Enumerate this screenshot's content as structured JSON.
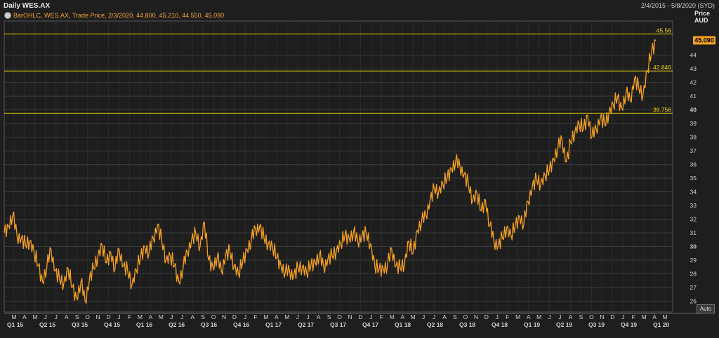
{
  "header": {
    "title": "Daily WES.AX",
    "date_range": "2/4/2015 - 5/8/2020 (SYD)",
    "price_label": "Price",
    "currency_label": "AUD",
    "auto_label": "Auto"
  },
  "legend": {
    "text": "BarOHLC, WES.AX, Trade Price, 2/3/2020, 44.800, 45.210, 44.550, 45.090"
  },
  "colors": {
    "background": "#1e1e1e",
    "series": "#f5a020",
    "hlines": "#e8d000",
    "last_price_tag": "#f5a020",
    "grid": "#3a3a3a"
  },
  "chart_data": {
    "type": "line",
    "title": "Daily WES.AX",
    "ylabel": "Price AUD",
    "ylim": [
      25.2,
      46.5
    ],
    "grid": true,
    "y_ticks": [
      26,
      27,
      28,
      29,
      30,
      31,
      32,
      33,
      34,
      35,
      36,
      37,
      38,
      39,
      40,
      41,
      42,
      43,
      44
    ],
    "month_labels": [
      "M",
      "A",
      "M",
      "J",
      "J",
      "A",
      "S",
      "O",
      "N",
      "D",
      "J",
      "F",
      "M",
      "A",
      "M",
      "J",
      "J",
      "A",
      "S",
      "O",
      "N",
      "D",
      "J",
      "F",
      "M",
      "A",
      "M",
      "J",
      "J",
      "A",
      "S",
      "O",
      "N",
      "D",
      "J",
      "F",
      "M",
      "A",
      "M",
      "J",
      "J",
      "A",
      "S",
      "O",
      "N",
      "D",
      "J",
      "F",
      "M",
      "A",
      "M",
      "J",
      "J",
      "A",
      "S",
      "O",
      "N",
      "D",
      "J",
      "F",
      "M",
      "A",
      "M"
    ],
    "quarter_labels": [
      "Q1 15",
      "Q2 15",
      "Q3 15",
      "Q4 15",
      "Q1 16",
      "Q2 16",
      "Q3 16",
      "Q4 16",
      "Q1 17",
      "Q2 17",
      "Q3 17",
      "Q4 17",
      "Q1 18",
      "Q2 18",
      "Q3 18",
      "Q4 18",
      "Q1 19",
      "Q2 19",
      "Q3 19",
      "Q4 19",
      "Q1 20"
    ],
    "horizontal_lines": [
      {
        "label": "45.56",
        "value": 45.56
      },
      {
        "label": "42.846",
        "value": 42.846
      },
      {
        "label": "39.756",
        "value": 39.756
      }
    ],
    "last_price": {
      "label": "45.090",
      "value": 45.09
    },
    "series": [
      {
        "values": [
          [
            0,
            31.0
          ],
          [
            1,
            31.5
          ],
          [
            2,
            32.3
          ],
          [
            3,
            30.8
          ],
          [
            4,
            30.6
          ],
          [
            5,
            30.1
          ],
          [
            6,
            30.4
          ],
          [
            7,
            29.6
          ],
          [
            8,
            28.6
          ],
          [
            9,
            27.4
          ],
          [
            10,
            28.5
          ],
          [
            11,
            29.8
          ],
          [
            12,
            28.2
          ],
          [
            13,
            27.6
          ],
          [
            14,
            27.3
          ],
          [
            15,
            28.4
          ],
          [
            16,
            27.0
          ],
          [
            17,
            26.2
          ],
          [
            18,
            27.4
          ],
          [
            19,
            26.0
          ],
          [
            20,
            27.6
          ],
          [
            21,
            28.4
          ],
          [
            22,
            29.3
          ],
          [
            23,
            30.1
          ],
          [
            24,
            28.8
          ],
          [
            25,
            29.6
          ],
          [
            26,
            28.3
          ],
          [
            27,
            29.8
          ],
          [
            28,
            28.6
          ],
          [
            29,
            28.2
          ],
          [
            30,
            27.2
          ],
          [
            31,
            28.3
          ],
          [
            32,
            29.2
          ],
          [
            33,
            30.0
          ],
          [
            34,
            29.5
          ],
          [
            35,
            30.6
          ],
          [
            36,
            31.6
          ],
          [
            37,
            30.4
          ],
          [
            38,
            29.0
          ],
          [
            39,
            29.3
          ],
          [
            40,
            28.6
          ],
          [
            41,
            27.4
          ],
          [
            42,
            28.4
          ],
          [
            43,
            29.6
          ],
          [
            44,
            30.5
          ],
          [
            45,
            30.9
          ],
          [
            46,
            30.0
          ],
          [
            47,
            31.8
          ],
          [
            48,
            29.0
          ],
          [
            49,
            28.5
          ],
          [
            50,
            29.2
          ],
          [
            51,
            28.2
          ],
          [
            52,
            29.4
          ],
          [
            53,
            29.6
          ],
          [
            54,
            28.6
          ],
          [
            55,
            28.0
          ],
          [
            56,
            28.9
          ],
          [
            57,
            29.8
          ],
          [
            58,
            30.4
          ],
          [
            59,
            31.3
          ],
          [
            60,
            31.5
          ],
          [
            61,
            30.6
          ],
          [
            62,
            30.2
          ],
          [
            63,
            30.0
          ],
          [
            64,
            29.2
          ],
          [
            65,
            28.6
          ],
          [
            66,
            28.1
          ],
          [
            67,
            28.2
          ],
          [
            68,
            27.9
          ],
          [
            69,
            28.4
          ],
          [
            70,
            28.5
          ],
          [
            71,
            28.1
          ],
          [
            72,
            28.6
          ],
          [
            73,
            28.9
          ],
          [
            74,
            29.3
          ],
          [
            75,
            28.5
          ],
          [
            76,
            29.1
          ],
          [
            77,
            29.3
          ],
          [
            78,
            29.7
          ],
          [
            79,
            30.2
          ],
          [
            80,
            30.8
          ],
          [
            81,
            30.6
          ],
          [
            82,
            31.0
          ],
          [
            83,
            30.4
          ],
          [
            84,
            30.8
          ],
          [
            85,
            30.9
          ],
          [
            86,
            30.2
          ],
          [
            87,
            28.6
          ],
          [
            88,
            28.3
          ],
          [
            89,
            28.4
          ],
          [
            90,
            28.6
          ],
          [
            91,
            29.8
          ],
          [
            92,
            28.6
          ],
          [
            93,
            28.4
          ],
          [
            94,
            28.8
          ],
          [
            95,
            30.4
          ],
          [
            96,
            29.5
          ],
          [
            97,
            31.2
          ],
          [
            98,
            31.8
          ],
          [
            99,
            32.3
          ],
          [
            100,
            33.4
          ],
          [
            101,
            34.2
          ],
          [
            102,
            34.0
          ],
          [
            103,
            34.6
          ],
          [
            104,
            35.0
          ],
          [
            105,
            35.7
          ],
          [
            106,
            36.2
          ],
          [
            107,
            35.9
          ],
          [
            108,
            35.3
          ],
          [
            109,
            34.5
          ],
          [
            110,
            33.4
          ],
          [
            111,
            33.9
          ],
          [
            112,
            32.6
          ],
          [
            113,
            33.4
          ],
          [
            114,
            31.5
          ],
          [
            115,
            30.4
          ],
          [
            116,
            30.1
          ],
          [
            117,
            30.6
          ],
          [
            118,
            31.4
          ],
          [
            119,
            30.8
          ],
          [
            120,
            31.5
          ],
          [
            121,
            32.2
          ],
          [
            122,
            31.6
          ],
          [
            123,
            33.3
          ],
          [
            124,
            34.4
          ],
          [
            125,
            34.9
          ],
          [
            126,
            34.6
          ],
          [
            127,
            35.2
          ],
          [
            128,
            35.6
          ],
          [
            129,
            36.4
          ],
          [
            130,
            37.2
          ],
          [
            131,
            37.8
          ],
          [
            132,
            36.2
          ],
          [
            133,
            37.6
          ],
          [
            134,
            38.4
          ],
          [
            135,
            39.0
          ],
          [
            136,
            38.6
          ],
          [
            137,
            39.6
          ],
          [
            138,
            38.0
          ],
          [
            139,
            38.6
          ],
          [
            140,
            39.5
          ],
          [
            141,
            38.9
          ],
          [
            142,
            39.8
          ],
          [
            143,
            40.4
          ],
          [
            144,
            40.9
          ],
          [
            145,
            40.1
          ],
          [
            146,
            41.2
          ],
          [
            147,
            40.7
          ],
          [
            148,
            42.3
          ],
          [
            149,
            41.6
          ],
          [
            150,
            41.1
          ],
          [
            151,
            42.9
          ],
          [
            152,
            44.2
          ],
          [
            153,
            45.09
          ]
        ]
      }
    ]
  }
}
